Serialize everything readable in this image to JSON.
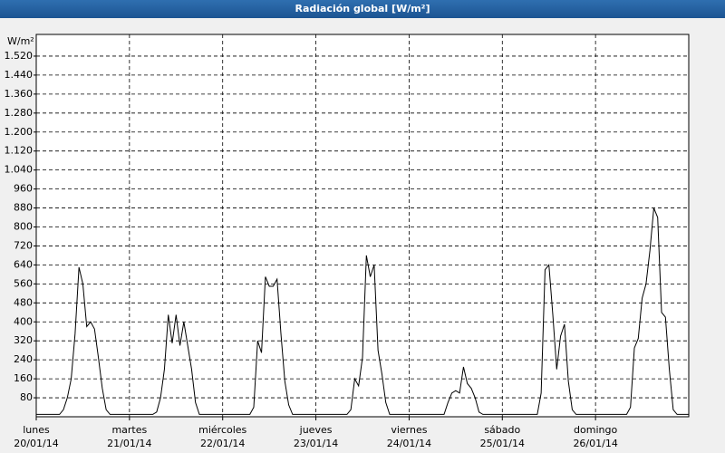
{
  "chart_data": {
    "type": "line",
    "title": "Radiación global [W/m²]",
    "y_unit": "W/m²",
    "color": "#000000",
    "grid": true,
    "xlim": [
      0,
      168
    ],
    "ylim": [
      0,
      1600
    ],
    "xticks": [
      {
        "value": 0,
        "label": "lunes"
      },
      {
        "value": 24,
        "label": "martes"
      },
      {
        "value": 48,
        "label": "miércoles"
      },
      {
        "value": 72,
        "label": "jueves"
      },
      {
        "value": 96,
        "label": "viernes"
      },
      {
        "value": 120,
        "label": "sábado"
      },
      {
        "value": 144,
        "label": "domingo"
      }
    ],
    "xtick_dates": [
      "20/01/14",
      "21/01/14",
      "22/01/14",
      "23/01/14",
      "24/01/14",
      "25/01/14",
      "26/01/14"
    ],
    "yticks": [
      {
        "value": 80,
        "label": "80"
      },
      {
        "value": 160,
        "label": "160"
      },
      {
        "value": 240,
        "label": "240"
      },
      {
        "value": 320,
        "label": "320"
      },
      {
        "value": 400,
        "label": "400"
      },
      {
        "value": 480,
        "label": "480"
      },
      {
        "value": 560,
        "label": "560"
      },
      {
        "value": 640,
        "label": "640"
      },
      {
        "value": 720,
        "label": "720"
      },
      {
        "value": 800,
        "label": "800"
      },
      {
        "value": 880,
        "label": "880"
      },
      {
        "value": 960,
        "label": "960"
      },
      {
        "value": 1040,
        "label": "1.040"
      },
      {
        "value": 1120,
        "label": "1.120"
      },
      {
        "value": 1200,
        "label": "1.200"
      },
      {
        "value": 1280,
        "label": "1.280"
      },
      {
        "value": 1360,
        "label": "1.360"
      },
      {
        "value": 1440,
        "label": "1.440"
      },
      {
        "value": 1520,
        "label": "1.520"
      }
    ],
    "x": [
      0,
      6,
      7,
      8,
      9,
      10,
      11,
      12,
      13,
      14,
      15,
      16,
      17,
      18,
      19,
      30,
      31,
      32,
      33,
      34,
      35,
      36,
      37,
      38,
      39,
      40,
      41,
      42,
      55,
      56,
      57,
      58,
      59,
      60,
      61,
      62,
      63,
      64,
      65,
      66,
      80,
      81,
      82,
      83,
      84,
      85,
      86,
      87,
      88,
      89,
      90,
      91,
      105,
      106,
      107,
      108,
      109,
      110,
      111,
      112,
      113,
      114,
      115,
      129,
      130,
      131,
      132,
      133,
      134,
      135,
      136,
      137,
      138,
      139,
      152,
      153,
      154,
      155,
      156,
      157,
      158,
      159,
      160,
      161,
      162,
      163,
      164,
      165,
      168
    ],
    "values": [
      10,
      10,
      30,
      80,
      160,
      350,
      630,
      560,
      380,
      400,
      370,
      250,
      120,
      30,
      10,
      10,
      20,
      80,
      200,
      430,
      310,
      430,
      300,
      400,
      300,
      200,
      60,
      10,
      10,
      40,
      320,
      270,
      590,
      550,
      550,
      580,
      350,
      150,
      50,
      10,
      10,
      30,
      160,
      130,
      250,
      680,
      590,
      640,
      280,
      180,
      60,
      10,
      10,
      60,
      100,
      110,
      100,
      210,
      140,
      120,
      80,
      20,
      10,
      10,
      100,
      620,
      640,
      430,
      200,
      340,
      390,
      150,
      30,
      10,
      10,
      40,
      290,
      330,
      500,
      560,
      700,
      880,
      840,
      440,
      420,
      200,
      30,
      10,
      10
    ]
  }
}
